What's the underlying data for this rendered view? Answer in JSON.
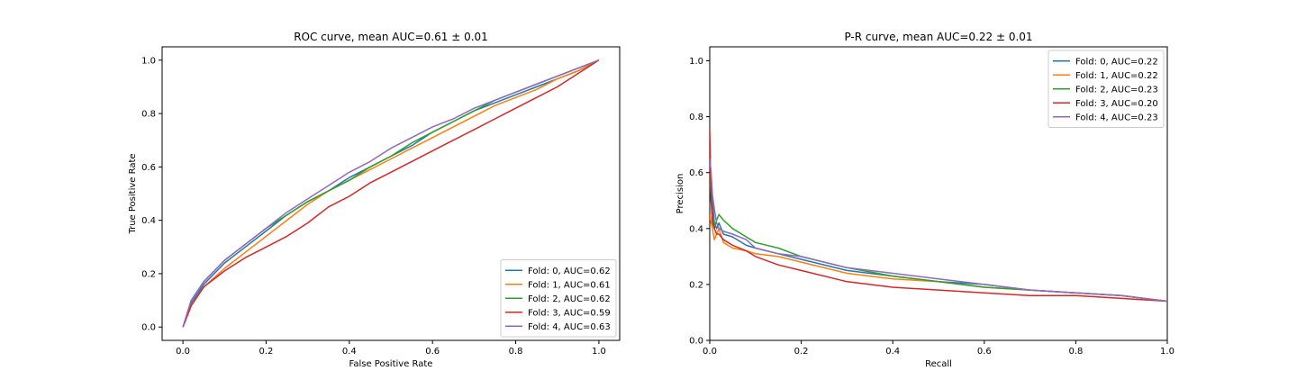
{
  "chart_data": [
    {
      "type": "line",
      "title": "ROC curve, mean AUC=0.61 ± 0.01",
      "xlabel": "False Positive Rate",
      "ylabel": "True Positive Rate",
      "xlim": [
        -0.05,
        1.05
      ],
      "ylim": [
        -0.05,
        1.05
      ],
      "xticks": [
        "0.0",
        "0.2",
        "0.4",
        "0.6",
        "0.8",
        "1.0"
      ],
      "yticks": [
        "0.0",
        "0.2",
        "0.4",
        "0.6",
        "0.8",
        "1.0"
      ],
      "grid": false,
      "legend_position": "lower-right",
      "series": [
        {
          "name": "Fold: 0, AUC=0.62",
          "color": "#1f77b4",
          "x": [
            0,
            0.02,
            0.05,
            0.1,
            0.15,
            0.2,
            0.25,
            0.3,
            0.35,
            0.4,
            0.45,
            0.5,
            0.55,
            0.6,
            0.65,
            0.7,
            0.75,
            0.8,
            0.85,
            0.9,
            0.95,
            1.0
          ],
          "y": [
            0,
            0.09,
            0.16,
            0.24,
            0.3,
            0.36,
            0.42,
            0.47,
            0.51,
            0.56,
            0.6,
            0.64,
            0.68,
            0.73,
            0.77,
            0.81,
            0.84,
            0.87,
            0.9,
            0.93,
            0.96,
            1.0
          ]
        },
        {
          "name": "Fold: 1, AUC=0.61",
          "color": "#ff7f0e",
          "x": [
            0,
            0.02,
            0.05,
            0.1,
            0.15,
            0.2,
            0.25,
            0.3,
            0.35,
            0.4,
            0.45,
            0.5,
            0.55,
            0.6,
            0.65,
            0.7,
            0.75,
            0.8,
            0.85,
            0.9,
            0.95,
            1.0
          ],
          "y": [
            0,
            0.08,
            0.15,
            0.22,
            0.28,
            0.34,
            0.4,
            0.46,
            0.51,
            0.55,
            0.59,
            0.63,
            0.67,
            0.71,
            0.75,
            0.79,
            0.83,
            0.86,
            0.89,
            0.93,
            0.96,
            1.0
          ]
        },
        {
          "name": "Fold: 2, AUC=0.62",
          "color": "#2ca02c",
          "x": [
            0,
            0.02,
            0.05,
            0.1,
            0.15,
            0.2,
            0.25,
            0.3,
            0.35,
            0.4,
            0.45,
            0.5,
            0.55,
            0.6,
            0.65,
            0.7,
            0.75,
            0.8,
            0.85,
            0.9,
            0.95,
            1.0
          ],
          "y": [
            0,
            0.1,
            0.17,
            0.25,
            0.31,
            0.37,
            0.42,
            0.47,
            0.51,
            0.55,
            0.6,
            0.64,
            0.69,
            0.73,
            0.77,
            0.81,
            0.85,
            0.88,
            0.91,
            0.94,
            0.97,
            1.0
          ]
        },
        {
          "name": "Fold: 3, AUC=0.59",
          "color": "#d62728",
          "x": [
            0,
            0.02,
            0.05,
            0.1,
            0.15,
            0.2,
            0.25,
            0.3,
            0.35,
            0.4,
            0.45,
            0.5,
            0.55,
            0.6,
            0.65,
            0.7,
            0.75,
            0.8,
            0.85,
            0.9,
            0.95,
            1.0
          ],
          "y": [
            0,
            0.08,
            0.15,
            0.21,
            0.26,
            0.3,
            0.34,
            0.39,
            0.45,
            0.49,
            0.54,
            0.58,
            0.62,
            0.66,
            0.7,
            0.74,
            0.78,
            0.82,
            0.86,
            0.9,
            0.95,
            1.0
          ]
        },
        {
          "name": "Fold: 4, AUC=0.63",
          "color": "#9467bd",
          "x": [
            0,
            0.02,
            0.05,
            0.1,
            0.15,
            0.2,
            0.25,
            0.3,
            0.35,
            0.4,
            0.45,
            0.5,
            0.55,
            0.6,
            0.65,
            0.7,
            0.75,
            0.8,
            0.85,
            0.9,
            0.95,
            1.0
          ],
          "y": [
            0,
            0.1,
            0.17,
            0.25,
            0.31,
            0.37,
            0.43,
            0.48,
            0.53,
            0.58,
            0.62,
            0.67,
            0.71,
            0.75,
            0.78,
            0.82,
            0.85,
            0.88,
            0.91,
            0.94,
            0.97,
            1.0
          ]
        }
      ]
    },
    {
      "type": "line",
      "title": "P-R curve, mean AUC=0.22 ± 0.01",
      "xlabel": "Recall",
      "ylabel": "Precision",
      "xlim": [
        0,
        1.0
      ],
      "ylim": [
        0,
        1.05
      ],
      "xticks": [
        "0.0",
        "0.2",
        "0.4",
        "0.6",
        "0.8",
        "1.0"
      ],
      "yticks": [
        "0.0",
        "0.2",
        "0.4",
        "0.6",
        "0.8",
        "1.0"
      ],
      "grid": false,
      "legend_position": "upper-right",
      "series": [
        {
          "name": "Fold: 0, AUC=0.22",
          "color": "#1f77b4",
          "x": [
            0,
            0.003,
            0.006,
            0.01,
            0.015,
            0.02,
            0.03,
            0.05,
            0.08,
            0.1,
            0.15,
            0.2,
            0.3,
            0.4,
            0.5,
            0.6,
            0.7,
            0.8,
            0.9,
            1.0
          ],
          "y": [
            0.6,
            0.55,
            0.5,
            0.42,
            0.4,
            0.42,
            0.38,
            0.37,
            0.34,
            0.33,
            0.31,
            0.29,
            0.25,
            0.23,
            0.21,
            0.2,
            0.18,
            0.17,
            0.16,
            0.14
          ]
        },
        {
          "name": "Fold: 1, AUC=0.22",
          "color": "#ff7f0e",
          "x": [
            0,
            0.003,
            0.006,
            0.01,
            0.015,
            0.02,
            0.03,
            0.05,
            0.08,
            0.1,
            0.15,
            0.2,
            0.3,
            0.4,
            0.5,
            0.6,
            0.7,
            0.8,
            0.9,
            1.0
          ],
          "y": [
            0.45,
            0.42,
            0.4,
            0.36,
            0.38,
            0.4,
            0.35,
            0.33,
            0.32,
            0.31,
            0.3,
            0.28,
            0.24,
            0.22,
            0.21,
            0.19,
            0.18,
            0.17,
            0.16,
            0.14
          ]
        },
        {
          "name": "Fold: 2, AUC=0.23",
          "color": "#2ca02c",
          "x": [
            0,
            0.003,
            0.006,
            0.01,
            0.015,
            0.02,
            0.03,
            0.05,
            0.08,
            0.1,
            0.15,
            0.2,
            0.3,
            0.4,
            0.5,
            0.6,
            0.7,
            0.8,
            0.9,
            1.0
          ],
          "y": [
            0.6,
            0.5,
            0.45,
            0.4,
            0.43,
            0.45,
            0.43,
            0.4,
            0.37,
            0.35,
            0.33,
            0.3,
            0.26,
            0.23,
            0.21,
            0.19,
            0.18,
            0.17,
            0.16,
            0.14
          ]
        },
        {
          "name": "Fold: 3, AUC=0.20",
          "color": "#d62728",
          "x": [
            0,
            0.003,
            0.006,
            0.01,
            0.015,
            0.02,
            0.03,
            0.05,
            0.08,
            0.1,
            0.15,
            0.2,
            0.3,
            0.4,
            0.5,
            0.6,
            0.7,
            0.8,
            0.9,
            1.0
          ],
          "y": [
            0.75,
            0.5,
            0.42,
            0.4,
            0.38,
            0.38,
            0.36,
            0.34,
            0.32,
            0.3,
            0.27,
            0.25,
            0.21,
            0.19,
            0.18,
            0.17,
            0.16,
            0.16,
            0.15,
            0.14
          ]
        },
        {
          "name": "Fold: 4, AUC=0.23",
          "color": "#9467bd",
          "x": [
            0,
            0.003,
            0.006,
            0.01,
            0.015,
            0.02,
            0.03,
            0.05,
            0.08,
            0.1,
            0.15,
            0.2,
            0.3,
            0.4,
            0.5,
            0.6,
            0.7,
            0.8,
            0.9,
            1.0
          ],
          "y": [
            0.65,
            0.6,
            0.52,
            0.47,
            0.42,
            0.4,
            0.39,
            0.38,
            0.36,
            0.33,
            0.31,
            0.3,
            0.26,
            0.24,
            0.22,
            0.2,
            0.18,
            0.17,
            0.16,
            0.14
          ]
        }
      ]
    }
  ]
}
